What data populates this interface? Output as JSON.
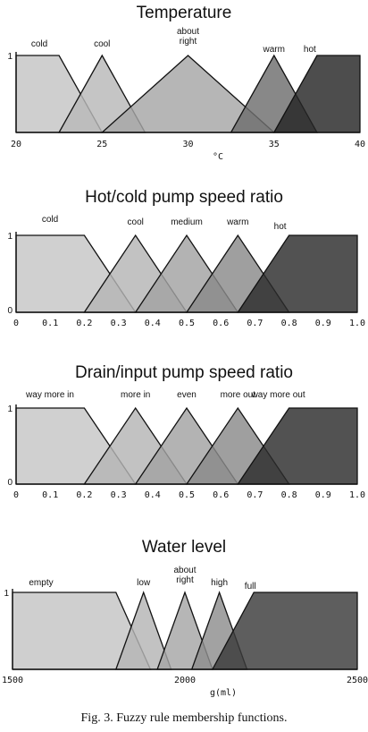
{
  "caption": "Fig.  3. Fuzzy rule membership functions.",
  "chart_data": [
    {
      "type": "area",
      "title": "Temperature",
      "xlabel": "°C",
      "xlim": [
        20,
        40
      ],
      "y_ticks": [
        "1"
      ],
      "x_ticks": [
        {
          "v": 20,
          "label": "20"
        },
        {
          "v": 25,
          "label": "25"
        },
        {
          "v": 30,
          "label": "30"
        },
        {
          "v": 35,
          "label": "35"
        },
        {
          "v": 40,
          "label": "40"
        }
      ],
      "series": [
        {
          "name": "cold",
          "shade": "#c4c4c4",
          "x": [
            20,
            22.5,
            25
          ],
          "y": [
            1,
            1,
            0
          ]
        },
        {
          "name": "cool",
          "shade": "#b8b8b8",
          "x": [
            22.5,
            25,
            27.5
          ],
          "y": [
            0,
            1,
            0
          ]
        },
        {
          "name": "about right",
          "shade": "#a6a6a6",
          "x": [
            25,
            30,
            35
          ],
          "y": [
            0,
            1,
            0
          ]
        },
        {
          "name": "warm",
          "shade": "#6e6e6e",
          "x": [
            32.5,
            35,
            37.5
          ],
          "y": [
            0,
            1,
            0
          ]
        },
        {
          "name": "hot",
          "shade": "#262626",
          "x": [
            35,
            37.5,
            40
          ],
          "y": [
            0,
            1,
            1
          ]
        }
      ]
    },
    {
      "type": "area",
      "title": "Hot/cold pump speed ratio",
      "xlabel": "",
      "xlim": [
        0,
        1
      ],
      "y_ticks": [
        "1",
        "0"
      ],
      "x_ticks": [
        {
          "v": 0,
          "label": "0"
        },
        {
          "v": 0.1,
          "label": "0.1"
        },
        {
          "v": 0.2,
          "label": "0.2"
        },
        {
          "v": 0.3,
          "label": "0.3"
        },
        {
          "v": 0.4,
          "label": "0.4"
        },
        {
          "v": 0.5,
          "label": "0.5"
        },
        {
          "v": 0.6,
          "label": "0.6"
        },
        {
          "v": 0.7,
          "label": "0.7"
        },
        {
          "v": 0.8,
          "label": "0.8"
        },
        {
          "v": 0.9,
          "label": "0.9"
        },
        {
          "v": 1.0,
          "label": "1.0"
        }
      ],
      "series": [
        {
          "name": "cold",
          "shade": "#c6c6c6",
          "x": [
            0,
            0.2,
            0.35
          ],
          "y": [
            1,
            1,
            0
          ]
        },
        {
          "name": "cool",
          "shade": "#b4b4b4",
          "x": [
            0.2,
            0.35,
            0.5
          ],
          "y": [
            0,
            1,
            0
          ]
        },
        {
          "name": "medium",
          "shade": "#a2a2a2",
          "x": [
            0.35,
            0.5,
            0.65
          ],
          "y": [
            0,
            1,
            0
          ]
        },
        {
          "name": "warm",
          "shade": "#8a8a8a",
          "x": [
            0.5,
            0.65,
            0.8
          ],
          "y": [
            0,
            1,
            0
          ]
        },
        {
          "name": "hot",
          "shade": "#2c2c2c",
          "x": [
            0.65,
            0.8,
            1.0
          ],
          "y": [
            0,
            1,
            1
          ]
        }
      ]
    },
    {
      "type": "area",
      "title": "Drain/input pump speed ratio",
      "xlabel": "",
      "xlim": [
        0,
        1
      ],
      "y_ticks": [
        "1",
        "0"
      ],
      "x_ticks": [
        {
          "v": 0,
          "label": "0"
        },
        {
          "v": 0.1,
          "label": "0.1"
        },
        {
          "v": 0.2,
          "label": "0.2"
        },
        {
          "v": 0.3,
          "label": "0.3"
        },
        {
          "v": 0.4,
          "label": "0.4"
        },
        {
          "v": 0.5,
          "label": "0.5"
        },
        {
          "v": 0.6,
          "label": "0.6"
        },
        {
          "v": 0.7,
          "label": "0.7"
        },
        {
          "v": 0.8,
          "label": "0.8"
        },
        {
          "v": 0.9,
          "label": "0.9"
        },
        {
          "v": 1.0,
          "label": "1.0"
        }
      ],
      "series": [
        {
          "name": "way more in",
          "shade": "#c6c6c6",
          "x": [
            0,
            0.2,
            0.35
          ],
          "y": [
            1,
            1,
            0
          ]
        },
        {
          "name": "more in",
          "shade": "#b4b4b4",
          "x": [
            0.2,
            0.35,
            0.5
          ],
          "y": [
            0,
            1,
            0
          ]
        },
        {
          "name": "even",
          "shade": "#a2a2a2",
          "x": [
            0.35,
            0.5,
            0.65
          ],
          "y": [
            0,
            1,
            0
          ]
        },
        {
          "name": "more out",
          "shade": "#8a8a8a",
          "x": [
            0.5,
            0.65,
            0.8
          ],
          "y": [
            0,
            1,
            0
          ]
        },
        {
          "name": "way more out",
          "shade": "#2c2c2c",
          "x": [
            0.65,
            0.8,
            1.0
          ],
          "y": [
            0,
            1,
            1
          ]
        }
      ]
    },
    {
      "type": "area",
      "title": "Water level",
      "xlabel": "g(ml)",
      "xlim": [
        1500,
        2500
      ],
      "y_ticks": [
        "1"
      ],
      "x_ticks": [
        {
          "v": 1500,
          "label": "1500"
        },
        {
          "v": 2000,
          "label": "2000"
        },
        {
          "v": 2500,
          "label": "2500"
        }
      ],
      "series": [
        {
          "name": "empty",
          "shade": "#c4c4c4",
          "x": [
            1500,
            1800,
            1900
          ],
          "y": [
            1,
            1,
            0
          ]
        },
        {
          "name": "low",
          "shade": "#b4b4b4",
          "x": [
            1800,
            1880,
            1960
          ],
          "y": [
            0,
            1,
            0
          ]
        },
        {
          "name": "about right",
          "shade": "#a6a6a6",
          "x": [
            1920,
            2000,
            2080
          ],
          "y": [
            0,
            1,
            0
          ]
        },
        {
          "name": "high",
          "shade": "#8e8e8e",
          "x": [
            2020,
            2100,
            2180
          ],
          "y": [
            0,
            1,
            0
          ]
        },
        {
          "name": "full",
          "shade": "#3a3a3a",
          "x": [
            2080,
            2200,
            2500
          ],
          "y": [
            0,
            1,
            1
          ]
        }
      ]
    }
  ]
}
